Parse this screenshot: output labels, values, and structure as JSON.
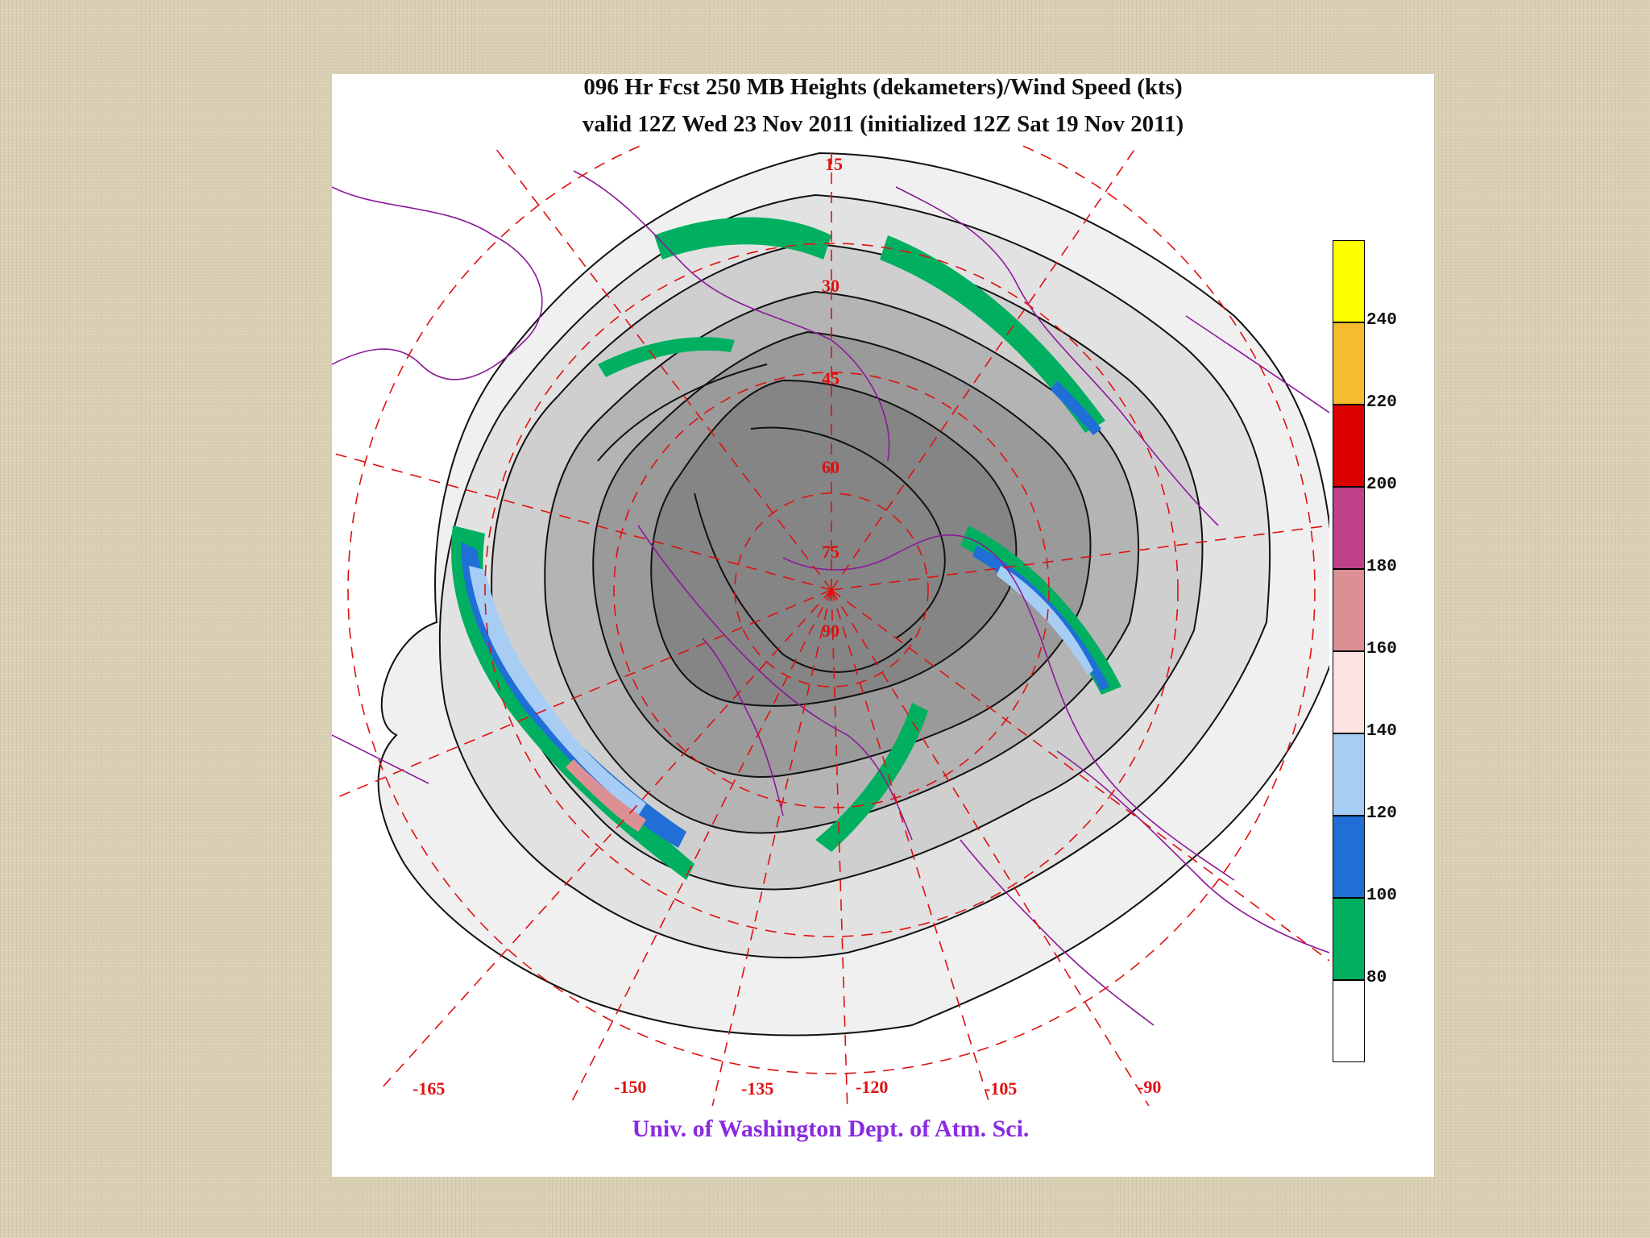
{
  "map": {
    "title": "096 Hr Fcst 250 MB Heights (dekameters)/Wind Speed (kts)",
    "subtitle": "valid 12Z Wed 23 Nov 2011 (initialized 12Z Sat 19 Nov 2011)",
    "credit": "Univ. of Washington Dept. of Atm. Sci.",
    "projection": "polar stereographic (North Pole)",
    "longitude_labels": [
      "-165",
      "-150",
      "-135",
      "-120",
      "-105",
      "-90"
    ],
    "latitude_labels": [
      "15",
      "30",
      "45",
      "60",
      "75",
      "90"
    ],
    "colors": {
      "coastline": "#8b1a9a",
      "graticule": "#e01010",
      "contour": "#111111",
      "credit_text": "#8a2be2"
    }
  },
  "legend": {
    "title": "Wind Speed (kts)",
    "ticks": [
      "240",
      "220",
      "200",
      "180",
      "160",
      "140",
      "120",
      "100",
      "80"
    ],
    "bins": [
      {
        "range": "> 240",
        "color": "#ffff00"
      },
      {
        "range": "220-240",
        "color": "#f5bc30"
      },
      {
        "range": "200-220",
        "color": "#dd0000"
      },
      {
        "range": "180-200",
        "color": "#c0408a"
      },
      {
        "range": "160-180",
        "color": "#dd9094"
      },
      {
        "range": "140-160",
        "color": "#fde2e2"
      },
      {
        "range": "120-140",
        "color": "#a8cdf5"
      },
      {
        "range": "100-120",
        "color": "#1f6fd6"
      },
      {
        "range": "80-100",
        "color": "#00b060"
      },
      {
        "range": "< 80",
        "color": "#ffffff"
      }
    ]
  }
}
